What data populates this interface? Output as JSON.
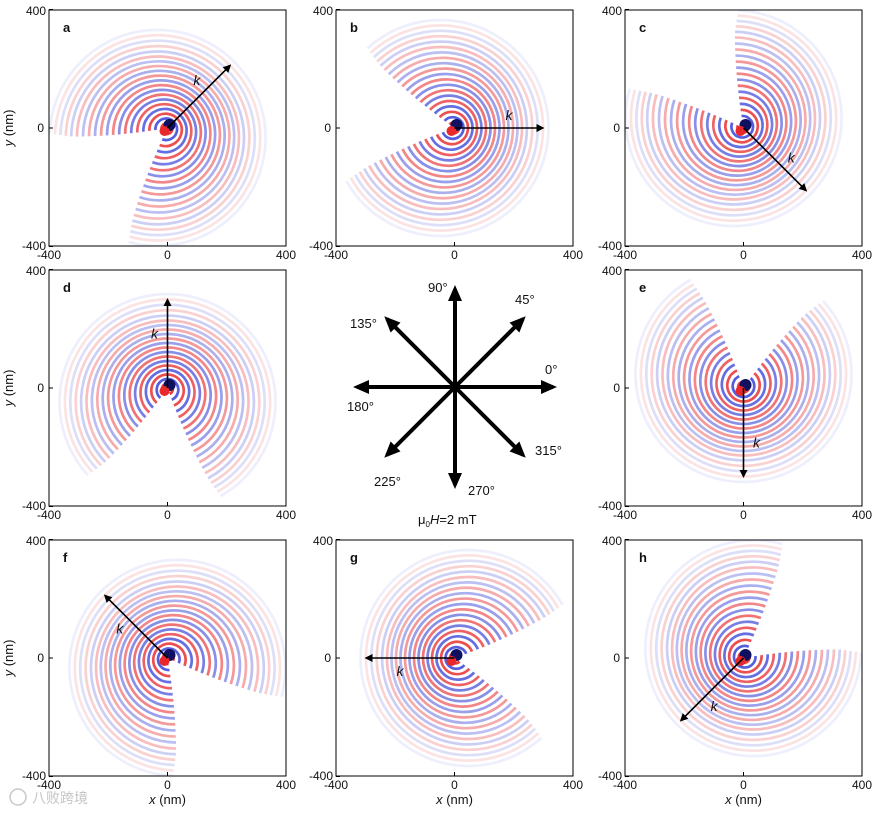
{
  "axis": {
    "x_label_var": "x",
    "x_label_unit": " (nm)",
    "y_label_var": "y",
    "y_label_unit": " (nm)",
    "ticks": [
      "-400",
      "0",
      "400"
    ]
  },
  "wave_colors": {
    "positive": "#e8282a",
    "negative": "#3a46d8",
    "core_dark": "#101060"
  },
  "panels": [
    {
      "letter": "a",
      "k_label": "k",
      "k_angle_deg": 45
    },
    {
      "letter": "b",
      "k_label": "k",
      "k_angle_deg": 0
    },
    {
      "letter": "c",
      "k_label": "k",
      "k_angle_deg": 315
    },
    {
      "letter": "d",
      "k_label": "k",
      "k_angle_deg": 90
    },
    {
      "letter": "e",
      "k_label": "k",
      "k_angle_deg": 270
    },
    {
      "letter": "f",
      "k_label": "k",
      "k_angle_deg": 135
    },
    {
      "letter": "g",
      "k_label": "k",
      "k_angle_deg": 180
    },
    {
      "letter": "h",
      "k_label": "k",
      "k_angle_deg": 225
    }
  ],
  "compass": {
    "labels": [
      "0°",
      "45°",
      "90°",
      "135°",
      "180°",
      "225°",
      "270°",
      "315°"
    ],
    "field_mu": "μ",
    "field_sub": "0",
    "field_var": "H",
    "field_value": "=2 mT"
  },
  "watermark": "八败跨境"
}
